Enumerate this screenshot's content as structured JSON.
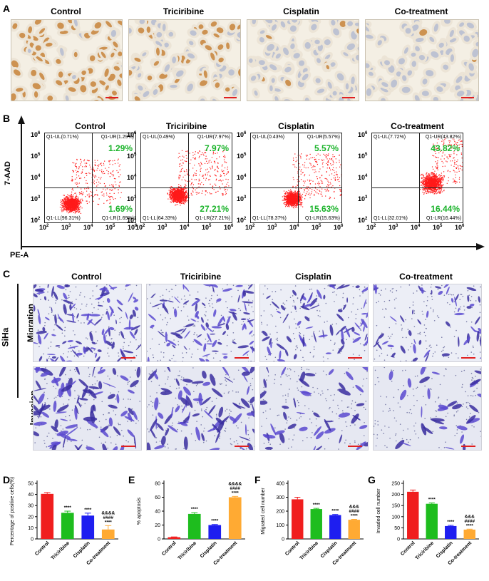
{
  "panel_a": {
    "label": "A",
    "titles": [
      "Control",
      "Triciribine",
      "Cisplatin",
      "Co-treatment"
    ],
    "brown_fraction": [
      0.85,
      0.45,
      0.12,
      0.03
    ]
  },
  "panel_b": {
    "label": "B",
    "titles": [
      "Control",
      "Triciribine",
      "Cisplatin",
      "Co-treatment"
    ],
    "ylabel": "7-AAD",
    "xlabel": "PE-A",
    "ticks": [
      "2",
      "3",
      "4",
      "5",
      "6"
    ],
    "plots": [
      {
        "ul": "Q1-UL(0.71%)",
        "ur": "Q1-UR(1.29%)",
        "ll": "Q1-LL(96.31%)",
        "lr": "Q1-LR(1.69%)",
        "ur_big": "1.29%",
        "lr_big": "1.69%"
      },
      {
        "ul": "Q1-UL(0.49%)",
        "ur": "Q1-UR(7.97%)",
        "ll": "Q1-LL(64.33%)",
        "lr": "Q1-LR(27.21%)",
        "ur_big": "7.97%",
        "lr_big": "27.21%"
      },
      {
        "ul": "Q1-UL(0.43%)",
        "ur": "Q1-UR(5.57%)",
        "ll": "Q1-LL(78.37%)",
        "lr": "Q1-LR(15.63%)",
        "ur_big": "5.57%",
        "lr_big": "15.63%"
      },
      {
        "ul": "Q1-UL(7.72%)",
        "ur": "Q1-UR(43.82%)",
        "ll": "Q1-LL(32.01%)",
        "lr": "Q1-LR(16.44%)",
        "ur_big": "43.82%",
        "lr_big": "16.44%"
      }
    ]
  },
  "panel_c": {
    "label": "C",
    "titles": [
      "Control",
      "Triciribine",
      "Cisplatin",
      "Co-treatment"
    ],
    "cell_line": "SiHa",
    "rows": [
      "Migration",
      "Invasion"
    ]
  },
  "chart_data": [
    {
      "type": "bar",
      "panel": "D",
      "categories": [
        "Control",
        "Triciribine",
        "Cisplatin",
        "Co-treatment"
      ],
      "values": [
        40.5,
        23.5,
        21,
        8.5
      ],
      "errors": [
        1.2,
        1.5,
        2.2,
        3.5
      ],
      "colors": [
        "#f01e1e",
        "#1ebd1e",
        "#1e1ef0",
        "#ffaa33"
      ],
      "ylabel": "Percentage of positive cells(%)",
      "ylim": [
        0,
        50
      ],
      "yticks": [
        0,
        10,
        20,
        30,
        40,
        50
      ],
      "annotations": [
        [],
        [
          "****"
        ],
        [
          "****"
        ],
        [
          "&&&&",
          "####",
          "****"
        ]
      ]
    },
    {
      "type": "bar",
      "panel": "E",
      "categories": [
        "Control",
        "Triciribine",
        "Cisplatin",
        "Co-treatment"
      ],
      "values": [
        2.5,
        36,
        20,
        60
      ],
      "errors": [
        0.4,
        1.8,
        0.8,
        1.2
      ],
      "colors": [
        "#f01e1e",
        "#1ebd1e",
        "#1e1ef0",
        "#ffaa33"
      ],
      "ylabel": "% apoptosis",
      "ylim": [
        0,
        80
      ],
      "yticks": [
        0,
        20,
        40,
        60,
        80
      ],
      "annotations": [
        [],
        [
          "****"
        ],
        [
          "****"
        ],
        [
          "&&&&",
          "####",
          "****"
        ]
      ]
    },
    {
      "type": "bar",
      "panel": "F",
      "categories": [
        "Control",
        "Triciribine",
        "Cisplatin",
        "Co-treatment"
      ],
      "values": [
        285,
        215,
        172,
        138
      ],
      "errors": [
        15,
        5,
        4,
        3
      ],
      "colors": [
        "#f01e1e",
        "#1ebd1e",
        "#1e1ef0",
        "#ffaa33"
      ],
      "ylabel": "Migrated cell number",
      "ylim": [
        0,
        400
      ],
      "yticks": [
        0,
        100,
        200,
        300,
        400
      ],
      "annotations": [
        [],
        [
          "****"
        ],
        [
          "****"
        ],
        [
          "&&&",
          "####",
          "****"
        ]
      ]
    },
    {
      "type": "bar",
      "panel": "G",
      "categories": [
        "Control",
        "Triciribine",
        "Cisplatin",
        "Co-treatment"
      ],
      "values": [
        212,
        158,
        58,
        42
      ],
      "errors": [
        8,
        4,
        3,
        2
      ],
      "colors": [
        "#f01e1e",
        "#1ebd1e",
        "#1e1ef0",
        "#ffaa33"
      ],
      "ylabel": "Invaded cell number",
      "ylim": [
        0,
        250
      ],
      "yticks": [
        0,
        50,
        100,
        150,
        200,
        250
      ],
      "annotations": [
        [],
        [
          "****"
        ],
        [
          "****"
        ],
        [
          "&&&",
          "####",
          "****"
        ]
      ]
    }
  ]
}
